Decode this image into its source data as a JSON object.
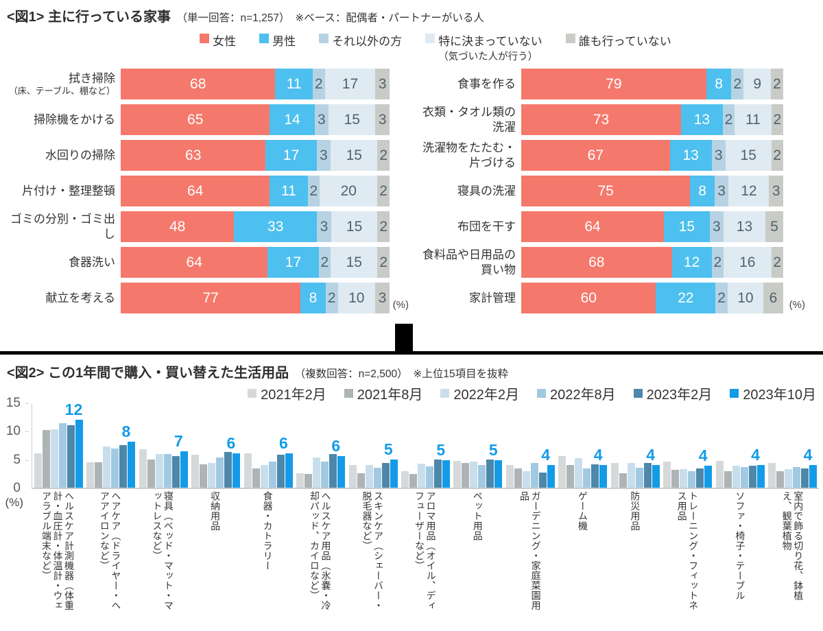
{
  "chart_data": [
    {
      "type": "bar",
      "variant": "horizontal-stacked",
      "title": "<図1> 主に行っている家事",
      "subtitle": "（単一回答：n=1,257）　※ベース：配偶者・パートナーがいる人",
      "unit_label": "(%)",
      "xlim": [
        0,
        100
      ],
      "legend": [
        {
          "label": "女性",
          "color": "#F4796C"
        },
        {
          "label": "男性",
          "color": "#4DC0EF"
        },
        {
          "label": "それ以外の方",
          "color": "#B7D3E3"
        },
        {
          "label": "特に決まっていない",
          "sublabel": "（気づいた人が行う）",
          "color": "#DFEAF2"
        },
        {
          "label": "誰も行っていない",
          "color": "#C9CBC7"
        }
      ],
      "value_text_colors": [
        "#FFFFFF",
        "#FFFFFF",
        "#51626E",
        "#51626E",
        "#51626E"
      ],
      "columns": [
        {
          "rows": [
            {
              "label": "拭き掃除",
              "sublabel": "（床、テーブル、棚など）",
              "values": [
                68,
                11,
                2,
                17,
                3
              ]
            },
            {
              "label": "掃除機をかける",
              "values": [
                65,
                14,
                3,
                15,
                3
              ]
            },
            {
              "label": "水回りの掃除",
              "values": [
                63,
                17,
                3,
                15,
                2
              ]
            },
            {
              "label": "片付け・整理整頓",
              "values": [
                64,
                11,
                2,
                20,
                2
              ]
            },
            {
              "label": "ゴミの分別・ゴミ出し",
              "values": [
                48,
                33,
                3,
                15,
                2
              ]
            },
            {
              "label": "食器洗い",
              "values": [
                64,
                17,
                2,
                15,
                2
              ]
            },
            {
              "label": "献立を考える",
              "values": [
                77,
                8,
                2,
                10,
                3
              ]
            }
          ]
        },
        {
          "rows": [
            {
              "label": "食事を作る",
              "values": [
                79,
                8,
                2,
                9,
                2
              ]
            },
            {
              "label": "衣類・タオル類の洗濯",
              "values": [
                73,
                13,
                2,
                11,
                2
              ]
            },
            {
              "label": "洗濯物をたたむ・片づける",
              "values": [
                67,
                13,
                3,
                15,
                2
              ]
            },
            {
              "label": "寝具の洗濯",
              "values": [
                75,
                8,
                3,
                12,
                3
              ]
            },
            {
              "label": "布団を干す",
              "values": [
                64,
                15,
                3,
                13,
                5
              ]
            },
            {
              "label": "食料品や日用品の買い物",
              "values": [
                68,
                12,
                2,
                16,
                2
              ]
            },
            {
              "label": "家計管理",
              "values": [
                60,
                22,
                2,
                10,
                6
              ]
            }
          ]
        }
      ]
    },
    {
      "type": "bar",
      "variant": "vertical-grouped",
      "title": "<図2> この1年間で購入・買い替えた生活用品",
      "subtitle": "（複数回答：n=2,500）　※上位15項目を抜粋",
      "unit_label": "(%)",
      "ylim": [
        0,
        15
      ],
      "yticks": [
        0,
        5,
        10,
        15
      ],
      "label_color": "#149BE8",
      "series": [
        {
          "name": "2021年2月",
          "color": "#D6D9DA"
        },
        {
          "name": "2021年8月",
          "color": "#AEB3B6"
        },
        {
          "name": "2022年2月",
          "color": "#C8DEEC"
        },
        {
          "name": "2022年8月",
          "color": "#A2C9E2"
        },
        {
          "name": "2023年2月",
          "color": "#4D87A9"
        },
        {
          "name": "2023年10月",
          "color": "#149BE8"
        }
      ],
      "categories": [
        "ヘルスケア計測機器（体重計・血圧計・体温計・ウェアラブル端末など）",
        "ヘアケア（ドライヤー・ヘアアイロンなど）",
        "寝具（ベッド・マット・マットレスなど）",
        "収納用品",
        "食器・カトラリー",
        "ヘルスケア用品（氷嚢・冷却パッド、カイロなど）",
        "スキンケア（シェーバー・脱毛器など）",
        "アロマ用品（オイル、ディフューザーなど）",
        "ペット用品",
        "ガーデニング・家庭菜園用品",
        "ゲーム機",
        "防災用品",
        "トレーニング・フィットネス用品",
        "ソファ・椅子・テーブル",
        "室内で飾る切り花、鉢植え、観葉植物"
      ],
      "values": [
        [
          6.2,
          10.3,
          10.4,
          11.6,
          11.2,
          12.2
        ],
        [
          4.6,
          4.6,
          7.4,
          7.0,
          7.6,
          8.2
        ],
        [
          6.9,
          5.1,
          6.0,
          6.0,
          5.7,
          6.5
        ],
        [
          5.9,
          4.2,
          4.4,
          5.4,
          6.4,
          6.1
        ],
        [
          6.2,
          3.5,
          4.0,
          4.7,
          5.9,
          6.1
        ],
        [
          2.6,
          2.5,
          5.4,
          4.7,
          6.0,
          5.7
        ],
        [
          4.0,
          2.6,
          4.1,
          3.6,
          4.4,
          5.0
        ],
        [
          3.0,
          2.4,
          4.3,
          3.8,
          5.0,
          4.9
        ],
        [
          4.8,
          4.4,
          4.7,
          4.0,
          5.1,
          4.9
        ],
        [
          4.1,
          3.5,
          2.9,
          4.4,
          2.7,
          4.0
        ],
        [
          5.7,
          4.1,
          5.3,
          3.4,
          4.2,
          4.0
        ],
        [
          4.4,
          2.6,
          4.4,
          3.6,
          4.4,
          4.0
        ],
        [
          4.7,
          3.2,
          3.3,
          2.9,
          3.5,
          3.9
        ],
        [
          4.8,
          3.0,
          3.9,
          3.7,
          3.9,
          4.0
        ],
        [
          4.4,
          3.0,
          3.3,
          3.7,
          3.5,
          4.0
        ]
      ],
      "bar_labels": [
        12,
        8,
        7,
        6,
        6,
        6,
        5,
        5,
        5,
        4,
        4,
        4,
        4,
        4,
        4
      ]
    }
  ]
}
